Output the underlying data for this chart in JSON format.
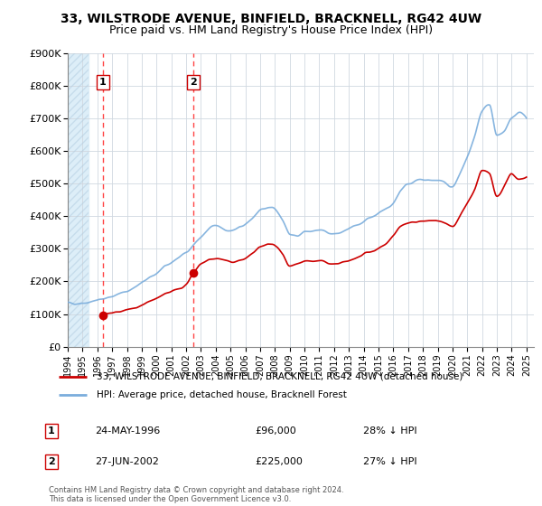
{
  "title_line1": "33, WILSTRODE AVENUE, BINFIELD, BRACKNELL, RG42 4UW",
  "title_line2": "Price paid vs. HM Land Registry's House Price Index (HPI)",
  "hpi_color": "#7aaddc",
  "price_color": "#cc0000",
  "dashed_color": "#ff4444",
  "ylim": [
    0,
    900000
  ],
  "yticks": [
    0,
    100000,
    200000,
    300000,
    400000,
    500000,
    600000,
    700000,
    800000,
    900000
  ],
  "ytick_labels": [
    "£0",
    "£100K",
    "£200K",
    "£300K",
    "£400K",
    "£500K",
    "£600K",
    "£700K",
    "£800K",
    "£900K"
  ],
  "legend_label_price": "33, WILSTRODE AVENUE, BINFIELD, BRACKNELL, RG42 4UW (detached house)",
  "legend_label_hpi": "HPI: Average price, detached house, Bracknell Forest",
  "sale1_year": 1996.38,
  "sale1_price": 96000,
  "sale1_label": "1",
  "sale1_date": "24-MAY-1996",
  "sale1_amount": "£96,000",
  "sale1_pct": "28% ↓ HPI",
  "sale2_year": 2002.49,
  "sale2_price": 225000,
  "sale2_label": "2",
  "sale2_date": "27-JUN-2002",
  "sale2_amount": "£225,000",
  "sale2_pct": "27% ↓ HPI",
  "footer": "Contains HM Land Registry data © Crown copyright and database right 2024.\nThis data is licensed under the Open Government Licence v3.0.",
  "xmin": 1994,
  "xmax": 2025.5,
  "hatch_xmin": 1994,
  "hatch_xmax": 1995.4
}
